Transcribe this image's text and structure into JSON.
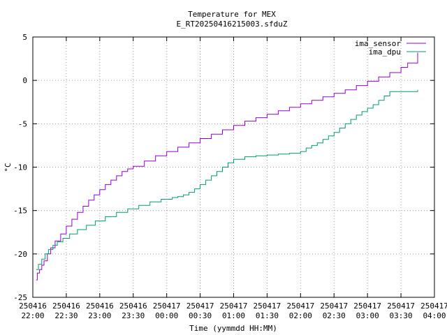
{
  "chart_data": {
    "type": "line",
    "title": "Temperature for MEX",
    "subtitle": "E_RT20250416215003.sfduZ",
    "xlabel": "Time (yymmdd HH:MM)",
    "ylabel": "°C",
    "ylim": [
      -25,
      5
    ],
    "yticks": [
      -25,
      -20,
      -15,
      -10,
      -5,
      0,
      5
    ],
    "xlim_minutes": [
      0,
      360
    ],
    "xticks": [
      {
        "date": "250416",
        "time": "22:00"
      },
      {
        "date": "250416",
        "time": "22:30"
      },
      {
        "date": "250416",
        "time": "23:00"
      },
      {
        "date": "250416",
        "time": "23:30"
      },
      {
        "date": "250417",
        "time": "00:00"
      },
      {
        "date": "250417",
        "time": "00:30"
      },
      {
        "date": "250417",
        "time": "01:00"
      },
      {
        "date": "250417",
        "time": "01:30"
      },
      {
        "date": "250417",
        "time": "02:00"
      },
      {
        "date": "250417",
        "time": "02:30"
      },
      {
        "date": "250417",
        "time": "03:00"
      },
      {
        "date": "250417",
        "time": "03:30"
      },
      {
        "date": "250417",
        "time": "04:00"
      }
    ],
    "grid": true,
    "legend_position": "top-right",
    "series": [
      {
        "name": "ima_sensor",
        "color": "#9400d3",
        "step": true,
        "x": [
          "250416 22:03",
          "250416 22:04",
          "250416 22:06",
          "250416 22:08",
          "250416 22:10",
          "250416 22:13",
          "250416 22:16",
          "250416 22:20",
          "250416 22:25",
          "250416 22:30",
          "250416 22:35",
          "250416 22:40",
          "250416 22:45",
          "250416 22:50",
          "250416 22:55",
          "250416 23:00",
          "250416 23:05",
          "250416 23:10",
          "250416 23:15",
          "250416 23:20",
          "250416 23:25",
          "250416 23:30",
          "250416 23:40",
          "250416 23:50",
          "250417 00:00",
          "250417 00:10",
          "250417 00:20",
          "250417 00:30",
          "250417 00:40",
          "250417 00:50",
          "250417 01:00",
          "250417 01:10",
          "250417 01:20",
          "250417 01:30",
          "250417 01:40",
          "250417 01:50",
          "250417 02:00",
          "250417 02:10",
          "250417 02:20",
          "250417 02:30",
          "250417 02:40",
          "250417 02:50",
          "250417 03:00",
          "250417 03:10",
          "250417 03:20",
          "250417 03:30",
          "250417 03:36",
          "250417 03:45"
        ],
        "y": [
          -23.0,
          -22.2,
          -21.8,
          -21.3,
          -20.8,
          -20.0,
          -19.3,
          -18.5,
          -17.7,
          -16.8,
          -16.0,
          -15.2,
          -14.5,
          -13.8,
          -13.2,
          -12.6,
          -12.0,
          -11.5,
          -11.0,
          -10.5,
          -10.2,
          -9.9,
          -9.3,
          -8.7,
          -8.2,
          -7.7,
          -7.2,
          -6.7,
          -6.2,
          -5.7,
          -5.2,
          -4.7,
          -4.3,
          -3.9,
          -3.5,
          -3.1,
          -2.7,
          -2.3,
          -1.9,
          -1.5,
          -1.1,
          -0.6,
          -0.1,
          0.4,
          0.9,
          1.5,
          2.0,
          3.2
        ]
      },
      {
        "name": "ima_dpu",
        "color": "#009e73",
        "step": true,
        "x": [
          "250416 22:03",
          "250416 22:05",
          "250416 22:08",
          "250416 22:11",
          "250416 22:14",
          "250416 22:18",
          "250416 22:22",
          "250416 22:27",
          "250416 22:33",
          "250416 22:40",
          "250416 22:48",
          "250416 22:56",
          "250416 23:05",
          "250416 23:15",
          "250416 23:25",
          "250416 23:35",
          "250416 23:45",
          "250416 23:55",
          "250417 00:05",
          "250417 00:10",
          "250417 00:15",
          "250417 00:20",
          "250417 00:25",
          "250417 00:30",
          "250417 00:35",
          "250417 00:40",
          "250417 00:45",
          "250417 00:50",
          "250417 00:55",
          "250417 01:00",
          "250417 01:10",
          "250417 01:20",
          "250417 01:30",
          "250417 01:40",
          "250417 01:50",
          "250417 02:00",
          "250417 02:05",
          "250417 02:10",
          "250417 02:15",
          "250417 02:20",
          "250417 02:25",
          "250417 02:30",
          "250417 02:35",
          "250417 02:40",
          "250417 02:45",
          "250417 02:50",
          "250417 02:55",
          "250417 03:00",
          "250417 03:05",
          "250417 03:10",
          "250417 03:15",
          "250417 03:20",
          "250417 03:45"
        ],
        "y": [
          -21.8,
          -21.2,
          -20.6,
          -20.0,
          -19.5,
          -19.0,
          -18.6,
          -18.2,
          -17.7,
          -17.2,
          -16.7,
          -16.2,
          -15.7,
          -15.2,
          -14.8,
          -14.4,
          -14.0,
          -13.7,
          -13.5,
          -13.4,
          -13.2,
          -12.9,
          -12.5,
          -12.0,
          -11.5,
          -11.0,
          -10.5,
          -10.0,
          -9.5,
          -9.1,
          -8.8,
          -8.7,
          -8.6,
          -8.5,
          -8.4,
          -8.2,
          -7.8,
          -7.5,
          -7.2,
          -6.8,
          -6.4,
          -6.0,
          -5.5,
          -5.0,
          -4.5,
          -4.0,
          -3.6,
          -3.2,
          -2.8,
          -2.3,
          -1.8,
          -1.3,
          -1.1
        ]
      }
    ]
  }
}
